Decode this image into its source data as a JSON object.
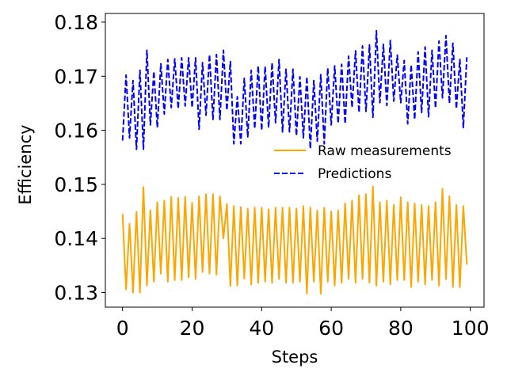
{
  "chart_data": {
    "type": "line",
    "xlabel": "Steps",
    "ylabel": "Efficiency",
    "xlim": [
      -4.95,
      103.95
    ],
    "ylim": [
      0.1273,
      0.1816
    ],
    "xticks": [
      0,
      20,
      40,
      60,
      80,
      100
    ],
    "xtick_labels": [
      "0",
      "20",
      "40",
      "60",
      "80",
      "100"
    ],
    "yticks": [
      0.13,
      0.14,
      0.15,
      0.16,
      0.17,
      0.18
    ],
    "ytick_labels": [
      "0.13",
      "0.14",
      "0.15",
      "0.16",
      "0.17",
      "0.18"
    ],
    "grid": false,
    "legend_position": "center-right",
    "x": [
      0,
      1,
      2,
      3,
      4,
      5,
      6,
      7,
      8,
      9,
      10,
      11,
      12,
      13,
      14,
      15,
      16,
      17,
      18,
      19,
      20,
      21,
      22,
      23,
      24,
      25,
      26,
      27,
      28,
      29,
      30,
      31,
      32,
      33,
      34,
      35,
      36,
      37,
      38,
      39,
      40,
      41,
      42,
      43,
      44,
      45,
      46,
      47,
      48,
      49,
      50,
      51,
      52,
      53,
      54,
      55,
      56,
      57,
      58,
      59,
      60,
      61,
      62,
      63,
      64,
      65,
      66,
      67,
      68,
      69,
      70,
      71,
      72,
      73,
      74,
      75,
      76,
      77,
      78,
      79,
      80,
      81,
      82,
      83,
      84,
      85,
      86,
      87,
      88,
      89,
      90,
      91,
      92,
      93,
      94,
      95,
      96,
      97,
      98,
      99
    ],
    "series": [
      {
        "name": "Raw measurements",
        "color": "#ffa500",
        "style": "solid",
        "values": [
          0.1444,
          0.1306,
          0.1427,
          0.13,
          0.1449,
          0.13,
          0.1495,
          0.1313,
          0.1452,
          0.132,
          0.1467,
          0.1335,
          0.147,
          0.132,
          0.1477,
          0.1323,
          0.1475,
          0.1323,
          0.1477,
          0.1328,
          0.1466,
          0.1325,
          0.1478,
          0.1338,
          0.1482,
          0.1335,
          0.1482,
          0.1333,
          0.1478,
          0.14,
          0.1464,
          0.1312,
          0.146,
          0.1313,
          0.1458,
          0.1326,
          0.1455,
          0.1315,
          0.1457,
          0.1318,
          0.1457,
          0.132,
          0.1454,
          0.1318,
          0.1457,
          0.1325,
          0.1457,
          0.1318,
          0.1457,
          0.1318,
          0.1455,
          0.132,
          0.146,
          0.1298,
          0.1457,
          0.132,
          0.1452,
          0.1298,
          0.1457,
          0.132,
          0.145,
          0.1313,
          0.1452,
          0.1318,
          0.1465,
          0.1325,
          0.147,
          0.1318,
          0.148,
          0.1325,
          0.1482,
          0.1318,
          0.1496,
          0.1313,
          0.1467,
          0.132,
          0.147,
          0.1315,
          0.1462,
          0.1323,
          0.1476,
          0.1323,
          0.1467,
          0.131,
          0.1465,
          0.132,
          0.1462,
          0.1315,
          0.146,
          0.1323,
          0.1467,
          0.1313,
          0.1492,
          0.1325,
          0.1478,
          0.131,
          0.1462,
          0.131,
          0.146,
          0.1353
        ]
      },
      {
        "name": "Predictions",
        "color": "#0000ff",
        "style": "dashed",
        "values": [
          0.1581,
          0.1702,
          0.1586,
          0.1692,
          0.1565,
          0.1711,
          0.1565,
          0.1748,
          0.161,
          0.1709,
          0.1605,
          0.1723,
          0.163,
          0.1731,
          0.1642,
          0.1732,
          0.164,
          0.1734,
          0.1645,
          0.1734,
          0.1642,
          0.1734,
          0.1602,
          0.1725,
          0.1628,
          0.174,
          0.162,
          0.174,
          0.162,
          0.1748,
          0.1637,
          0.1727,
          0.1575,
          0.1662,
          0.1575,
          0.1696,
          0.1588,
          0.1711,
          0.1603,
          0.1719,
          0.16,
          0.1718,
          0.1605,
          0.1725,
          0.1614,
          0.1731,
          0.1597,
          0.1713,
          0.1597,
          0.1713,
          0.159,
          0.1699,
          0.1586,
          0.1699,
          0.1566,
          0.1692,
          0.158,
          0.1703,
          0.1575,
          0.1715,
          0.161,
          0.1719,
          0.1613,
          0.1722,
          0.1612,
          0.1737,
          0.1642,
          0.1747,
          0.1633,
          0.1756,
          0.1635,
          0.1758,
          0.1624,
          0.1784,
          0.1651,
          0.1759,
          0.1646,
          0.1766,
          0.1654,
          0.1739,
          0.1651,
          0.1729,
          0.1612,
          0.1721,
          0.162,
          0.1745,
          0.1633,
          0.1754,
          0.1625,
          0.1748,
          0.1641,
          0.1765,
          0.166,
          0.1775,
          0.165,
          0.1761,
          0.164,
          0.1731,
          0.1605,
          0.1735
        ]
      }
    ]
  }
}
